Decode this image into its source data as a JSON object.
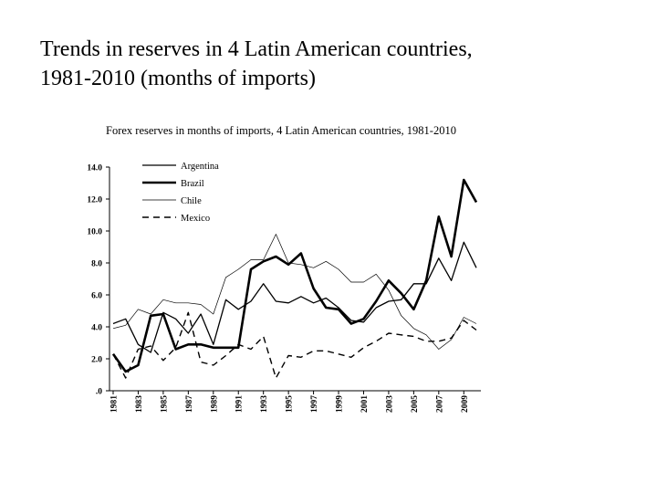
{
  "slide": {
    "title_line1": "Trends in reserves in 4 Latin American countries,",
    "title_line2": "1981-2010 (months of imports)"
  },
  "chart_data": {
    "type": "line",
    "title": "Forex reserves in months of imports, 4 Latin American countries, 1981-2010",
    "xlabel": "",
    "ylabel": "",
    "ylim": [
      0,
      14
    ],
    "yticks": [
      ".0",
      "2.0",
      "4.0",
      "6.0",
      "8.0",
      "10.0",
      "12.0",
      "14.0"
    ],
    "xtick_labels": [
      "1981",
      "1983",
      "1985",
      "1987",
      "1989",
      "1991",
      "1993",
      "1995",
      "1997",
      "1999",
      "2001",
      "2003",
      "2005",
      "2007",
      "2009"
    ],
    "legend_position": "top-left",
    "grid": false,
    "x": [
      1981,
      1982,
      1983,
      1984,
      1985,
      1986,
      1987,
      1988,
      1989,
      1990,
      1991,
      1992,
      1993,
      1994,
      1995,
      1996,
      1997,
      1998,
      1999,
      2000,
      2001,
      2002,
      2003,
      2004,
      2005,
      2006,
      2007,
      2008,
      2009,
      2010
    ],
    "series": [
      {
        "name": "Argentina",
        "style": "solid-thin",
        "values": [
          4.2,
          4.5,
          2.9,
          2.4,
          4.9,
          4.5,
          3.6,
          4.8,
          2.9,
          5.7,
          5.1,
          5.6,
          6.7,
          5.6,
          5.5,
          5.9,
          5.5,
          5.8,
          5.2,
          4.4,
          4.3,
          5.2,
          5.6,
          5.7,
          6.7,
          6.7,
          8.3,
          6.9,
          9.3,
          7.7
        ]
      },
      {
        "name": "Brazil",
        "style": "solid-thick",
        "values": [
          2.3,
          1.2,
          1.6,
          4.7,
          4.8,
          2.6,
          2.9,
          2.9,
          2.7,
          2.7,
          2.7,
          7.6,
          8.1,
          8.4,
          7.9,
          8.6,
          6.4,
          5.2,
          5.1,
          4.2,
          4.5,
          5.6,
          6.9,
          6.1,
          5.1,
          6.9,
          10.9,
          8.4,
          13.2,
          11.8
        ]
      },
      {
        "name": "Chile",
        "style": "solid-hairline",
        "values": [
          3.9,
          4.1,
          5.1,
          4.8,
          5.7,
          5.5,
          5.5,
          5.4,
          4.8,
          7.1,
          7.6,
          8.2,
          8.2,
          9.8,
          8.0,
          7.9,
          7.7,
          8.1,
          7.6,
          6.8,
          6.8,
          7.3,
          6.3,
          4.7,
          3.9,
          3.5,
          2.6,
          3.2,
          4.6,
          4.2
        ]
      },
      {
        "name": "Mexico",
        "style": "dashed",
        "values": [
          2.3,
          0.8,
          2.6,
          2.8,
          1.9,
          2.7,
          4.9,
          1.8,
          1.6,
          2.2,
          2.9,
          2.6,
          3.4,
          0.8,
          2.2,
          2.1,
          2.5,
          2.5,
          2.3,
          2.1,
          2.7,
          3.1,
          3.6,
          3.5,
          3.4,
          3.1,
          3.1,
          3.3,
          4.4,
          3.8
        ]
      }
    ]
  }
}
